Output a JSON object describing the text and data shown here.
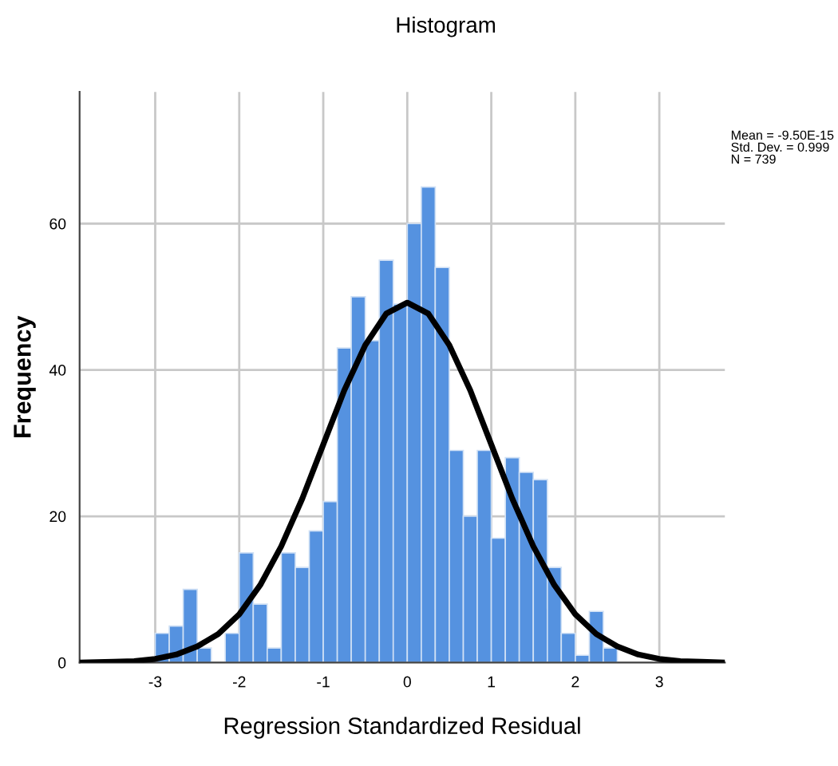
{
  "chart_data": {
    "type": "histogram",
    "title": "Histogram",
    "xlabel": "Regression Standardized Residual",
    "ylabel": "Frequency",
    "bins": [
      -3,
      -2.833,
      -2.667,
      -2.5,
      -2.333,
      -2.167,
      -2,
      -1.833,
      -1.667,
      -1.5,
      -1.333,
      -1.167,
      -1,
      -0.833,
      -0.667,
      -0.5,
      -0.333,
      -0.167,
      0,
      0.167,
      0.333,
      0.5,
      0.667,
      0.833,
      1,
      1.167,
      1.333,
      1.5,
      1.667,
      1.833,
      2,
      2.167,
      2.333,
      2.5
    ],
    "values": [
      4,
      5,
      10,
      2,
      0,
      4,
      15,
      8,
      2,
      15,
      13,
      18,
      22,
      43,
      50,
      44,
      55,
      49,
      60,
      65,
      54,
      29,
      20,
      29,
      17,
      28,
      26,
      25,
      13,
      4,
      1,
      7,
      2
    ],
    "color": "#5592e0",
    "series": [
      {
        "type": "line",
        "color": "#000000",
        "x": [
          -3.9,
          -3.5,
          -3.25,
          -3,
          -2.75,
          -2.5,
          -2.25,
          -2,
          -1.75,
          -1.5,
          -1.25,
          -1,
          -0.75,
          -0.5,
          -0.25,
          0,
          0.25,
          0.5,
          0.75,
          1,
          1.25,
          1.5,
          1.75,
          2,
          2.25,
          2.5,
          2.75,
          3,
          3.25,
          3.5,
          3.78
        ],
        "values": [
          0,
          0.1,
          0.2,
          0.5,
          1.1,
          2.2,
          3.9,
          6.6,
          10.6,
          15.9,
          22.4,
          29.8,
          37.2,
          43.4,
          47.7,
          49.2,
          47.7,
          43.4,
          37.2,
          29.8,
          22.4,
          15.9,
          10.6,
          6.6,
          3.9,
          2.2,
          1.1,
          0.5,
          0.2,
          0.1,
          0
        ]
      }
    ],
    "xlim": [
      -3.9,
      3.78
    ],
    "ylim": [
      0,
      78
    ],
    "xticks": [
      -3,
      -2,
      -1,
      0,
      1,
      2,
      3
    ],
    "yticks": [
      0,
      20,
      40,
      60
    ],
    "grid": true,
    "marker": "none",
    "line_style": "solid",
    "annotations": [
      "Mean = -9.50E-15\nStd. Dev. = 0.999\nN = 739"
    ]
  }
}
